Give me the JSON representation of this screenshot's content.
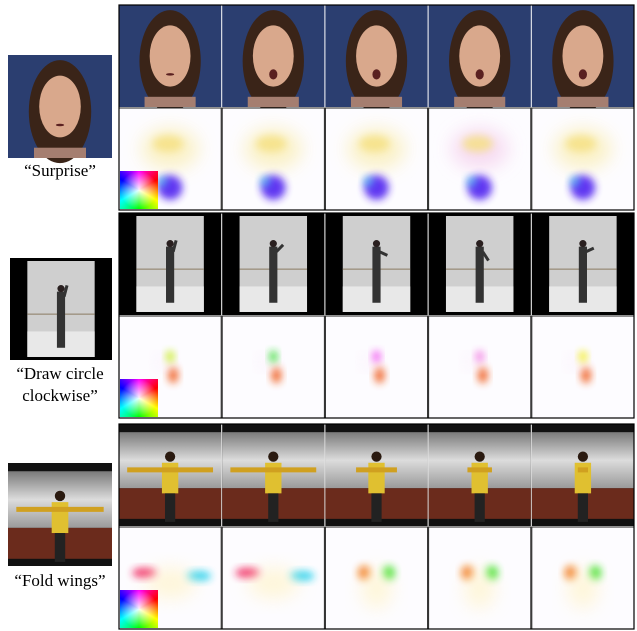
{
  "rows": [
    {
      "label_lines": [
        "“Surprise”"
      ]
    },
    {
      "label_lines": [
        "“Draw circle",
        "clockwise”"
      ]
    },
    {
      "label_lines": [
        "“Fold wings”"
      ]
    }
  ]
}
